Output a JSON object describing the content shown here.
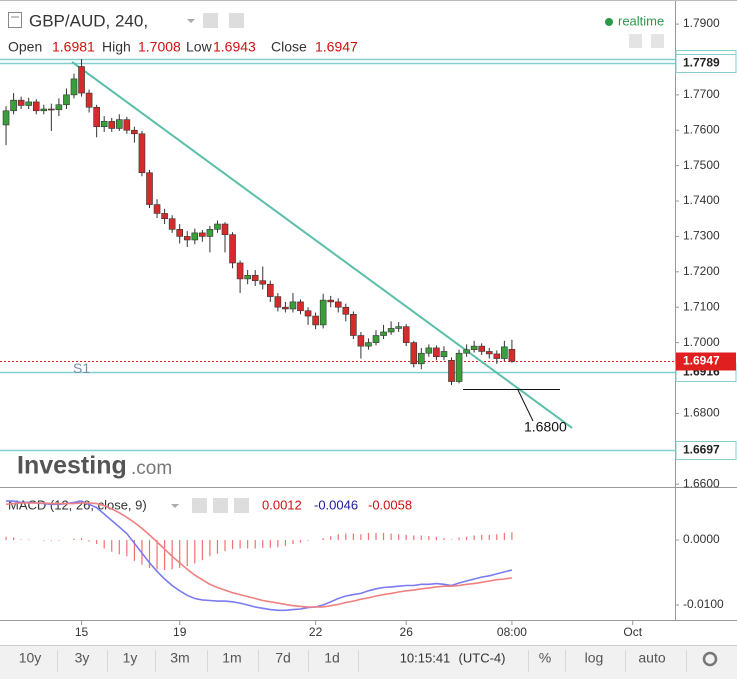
{
  "header": {
    "symbol": "GBP/AUD, 240,",
    "realtime": "realtime",
    "ohlc_labels": [
      "Open",
      "High",
      "Low",
      "Close"
    ]
  },
  "watermark": [
    "Investing",
    ".com"
  ],
  "toolbar": [
    "10y",
    "3y",
    "1y",
    "3m",
    "1m",
    "7d",
    "1d",
    "10:15:41",
    "(UTC-4)",
    "%",
    "log",
    "auto"
  ],
  "chart_data": [
    {
      "type": "candlestick",
      "up_color": "#3a9e3a",
      "down_color": "#d62b2b",
      "open": [
        1.7615,
        1.7655,
        1.7685,
        1.767,
        1.768,
        1.7655,
        1.766,
        1.7658,
        1.7672,
        1.77,
        1.778,
        1.7705,
        1.7665,
        1.761,
        1.7625,
        1.7605,
        1.763,
        1.76,
        1.759,
        1.748,
        1.739,
        1.7365,
        1.735,
        1.732,
        1.73,
        1.729,
        1.731,
        1.73,
        1.732,
        1.7335,
        1.7305,
        1.7225,
        1.718,
        1.719,
        1.7175,
        1.7165,
        1.713,
        1.71,
        1.7095,
        1.7115,
        1.709,
        1.7075,
        1.705,
        1.712,
        1.7115,
        1.71,
        1.708,
        1.702,
        1.699,
        1.7,
        1.702,
        1.703,
        1.704,
        1.7045,
        1.7,
        1.694,
        1.697,
        1.6985,
        1.696,
        1.695,
        1.689,
        1.697,
        1.698,
        1.699,
        1.6975,
        1.6968,
        1.6955,
        1.6981
      ],
      "high": [
        1.7668,
        1.7705,
        1.7695,
        1.7692,
        1.7688,
        1.7672,
        1.7675,
        1.769,
        1.7718,
        1.776,
        1.7801,
        1.7715,
        1.7672,
        1.764,
        1.7635,
        1.7645,
        1.7638,
        1.761,
        1.7598,
        1.7488,
        1.7405,
        1.7378,
        1.736,
        1.7335,
        1.7315,
        1.7322,
        1.7318,
        1.733,
        1.7345,
        1.734,
        1.7312,
        1.7232,
        1.7205,
        1.7205,
        1.7215,
        1.7175,
        1.714,
        1.7115,
        1.714,
        1.7122,
        1.71,
        1.7085,
        1.7138,
        1.7132,
        1.7125,
        1.711,
        1.7088,
        1.703,
        1.7012,
        1.7035,
        1.705,
        1.706,
        1.7058,
        1.7052,
        1.7005,
        1.6985,
        1.6995,
        1.6992,
        1.699,
        1.6958,
        1.698,
        1.6995,
        1.7005,
        1.6998,
        1.6985,
        1.6978,
        1.7005,
        1.7008
      ],
      "low": [
        1.7558,
        1.7645,
        1.766,
        1.766,
        1.7645,
        1.7645,
        1.7598,
        1.764,
        1.766,
        1.769,
        1.7695,
        1.765,
        1.758,
        1.7595,
        1.7595,
        1.7598,
        1.759,
        1.7565,
        1.747,
        1.738,
        1.7352,
        1.7335,
        1.731,
        1.728,
        1.727,
        1.7278,
        1.7285,
        1.7255,
        1.731,
        1.7255,
        1.721,
        1.714,
        1.7165,
        1.716,
        1.715,
        1.7115,
        1.7088,
        1.7085,
        1.7085,
        1.708,
        1.705,
        1.7038,
        1.704,
        1.71,
        1.7085,
        1.706,
        1.701,
        1.6955,
        1.698,
        1.6992,
        1.701,
        1.7022,
        1.703,
        1.699,
        1.693,
        1.6925,
        1.696,
        1.695,
        1.695,
        1.688,
        1.6885,
        1.696,
        1.6972,
        1.6965,
        1.6955,
        1.694,
        1.6948,
        1.6943
      ],
      "close": [
        1.7655,
        1.7685,
        1.767,
        1.768,
        1.7655,
        1.766,
        1.7658,
        1.7672,
        1.77,
        1.7745,
        1.7705,
        1.7665,
        1.761,
        1.7625,
        1.7605,
        1.763,
        1.76,
        1.759,
        1.748,
        1.739,
        1.7365,
        1.735,
        1.732,
        1.73,
        1.729,
        1.731,
        1.73,
        1.732,
        1.7335,
        1.7305,
        1.7225,
        1.718,
        1.719,
        1.7175,
        1.7165,
        1.713,
        1.71,
        1.7095,
        1.7115,
        1.709,
        1.7075,
        1.705,
        1.712,
        1.7115,
        1.71,
        1.708,
        1.702,
        1.699,
        1.7,
        1.702,
        1.703,
        1.704,
        1.7045,
        1.7,
        1.694,
        1.697,
        1.6985,
        1.696,
        1.6975,
        1.689,
        1.697,
        1.698,
        1.699,
        1.6975,
        1.6968,
        1.6955,
        1.6988,
        1.6947
      ],
      "xlim": [
        -0.8,
        88.6
      ],
      "xticks": [
        {
          "value": 10,
          "label": "15"
        },
        {
          "value": 23,
          "label": "19"
        },
        {
          "value": 41,
          "label": "22"
        },
        {
          "value": 53,
          "label": "26"
        },
        {
          "value": 67,
          "label": "08:00"
        },
        {
          "value": 83,
          "label": "Oct"
        }
      ],
      "ylim": [
        1.6592,
        1.7968
      ],
      "yticks": [
        {
          "value": 1.79,
          "label": "1.7900"
        },
        {
          "value": 1.77,
          "label": "1.7700"
        },
        {
          "value": 1.76,
          "label": "1.7600"
        },
        {
          "value": 1.75,
          "label": "1.7500"
        },
        {
          "value": 1.74,
          "label": "1.7400"
        },
        {
          "value": 1.73,
          "label": "1.7300"
        },
        {
          "value": 1.72,
          "label": "1.7200"
        },
        {
          "value": 1.71,
          "label": "1.7100"
        },
        {
          "value": 1.7,
          "label": "1.7000"
        },
        {
          "value": 1.68,
          "label": "1.6800"
        },
        {
          "value": 1.66,
          "label": "1.6600"
        }
      ],
      "levels": [
        {
          "value": 1.7801,
          "color": "#86cfcf"
        },
        {
          "value": 1.7789,
          "color": "#86cfcf"
        },
        {
          "value": 1.6916,
          "color": "#86cfcf"
        },
        {
          "value": 1.6697,
          "color": "#86cfcf"
        }
      ],
      "current_price": {
        "value": 1.6947,
        "color": "#e02020"
      },
      "trendline": {
        "x": [
          8.74,
          74.97
        ],
        "y": [
          1.7793,
          1.6759
        ],
        "color": "#5bbfa8"
      },
      "annotations": [
        "S1",
        "1.6800"
      ]
    },
    {
      "type": "macd",
      "title": "MACD (12, 26, close, 9)",
      "ylim": [
        -0.0123,
        0.0077
      ],
      "yticks": [
        {
          "value": 0,
          "label": "0.0000"
        },
        {
          "value": -0.01,
          "label": "-0.0100"
        }
      ],
      "histogram": {
        "color": "#f07070",
        "values": [
          0.0005,
          0.0004,
          0.0001,
          0.0001,
          0,
          -0.0001,
          -0.0001,
          -0.0001,
          0,
          0.0002,
          0.0003,
          -0.0002,
          -0.0006,
          -0.0013,
          -0.0018,
          -0.0022,
          -0.0025,
          -0.0032,
          -0.0038,
          -0.0043,
          -0.0045,
          -0.0046,
          -0.0045,
          -0.0043,
          -0.004,
          -0.0036,
          -0.0031,
          -0.0025,
          -0.0021,
          -0.0017,
          -0.0014,
          -0.0013,
          -0.0013,
          -0.0013,
          -0.0012,
          -0.0012,
          -0.0011,
          -0.0009,
          -0.0006,
          -0.0004,
          -0.0001,
          0,
          0.0003,
          0.0006,
          0.0009,
          0.001,
          0.001,
          0.0009,
          0.0011,
          0.0011,
          0.0011,
          0.001,
          0.0009,
          0.0008,
          0.0007,
          0.0007,
          0.0006,
          0.0005,
          0.0003,
          0.0001,
          0.0004,
          0.0005,
          0.0007,
          0.0008,
          0.0008,
          0.0009,
          0.0011,
          0.0012
        ]
      },
      "lines": [
        {
          "color": "#7b7bf2",
          "values": [
            0.006,
            0.006,
            0.0058,
            0.0058,
            0.0057,
            0.0056,
            0.0055,
            0.0055,
            0.0056,
            0.0058,
            0.006,
            0.0055,
            0.005,
            0.004,
            0.003,
            0.002,
            0.001,
            -0.0005,
            -0.002,
            -0.0035,
            -0.0048,
            -0.006,
            -0.007,
            -0.0078,
            -0.0085,
            -0.009,
            -0.0092,
            -0.0093,
            -0.0094,
            -0.0094,
            -0.0095,
            -0.0097,
            -0.01,
            -0.0103,
            -0.0105,
            -0.0107,
            -0.0108,
            -0.0108,
            -0.0107,
            -0.0106,
            -0.0104,
            -0.0103,
            -0.01,
            -0.0095,
            -0.009,
            -0.0086,
            -0.0084,
            -0.0082,
            -0.0078,
            -0.0075,
            -0.0073,
            -0.0072,
            -0.0071,
            -0.007,
            -0.007,
            -0.0068,
            -0.0068,
            -0.0067,
            -0.0068,
            -0.007,
            -0.0066,
            -0.0063,
            -0.006,
            -0.0057,
            -0.0055,
            -0.0052,
            -0.0049,
            -0.0046
          ]
        },
        {
          "color": "#f08080",
          "values": [
            0.0055,
            0.0056,
            0.0057,
            0.0057,
            0.0057,
            0.0057,
            0.0056,
            0.0056,
            0.0056,
            0.0056,
            0.0057,
            0.0057,
            0.0056,
            0.0053,
            0.0048,
            0.0042,
            0.0035,
            0.0027,
            0.0018,
            0.0008,
            -0.0003,
            -0.0014,
            -0.0025,
            -0.0035,
            -0.0045,
            -0.0054,
            -0.0061,
            -0.0068,
            -0.0073,
            -0.0077,
            -0.0081,
            -0.0084,
            -0.0087,
            -0.009,
            -0.0093,
            -0.0095,
            -0.0097,
            -0.0099,
            -0.0101,
            -0.0102,
            -0.0103,
            -0.0103,
            -0.0103,
            -0.0101,
            -0.0099,
            -0.0096,
            -0.0094,
            -0.0091,
            -0.0089,
            -0.0086,
            -0.0084,
            -0.0082,
            -0.008,
            -0.0078,
            -0.0077,
            -0.0075,
            -0.0074,
            -0.0072,
            -0.0071,
            -0.0071,
            -0.007,
            -0.0068,
            -0.0067,
            -0.0065,
            -0.0063,
            -0.0061,
            -0.006,
            -0.0058
          ]
        }
      ]
    }
  ]
}
